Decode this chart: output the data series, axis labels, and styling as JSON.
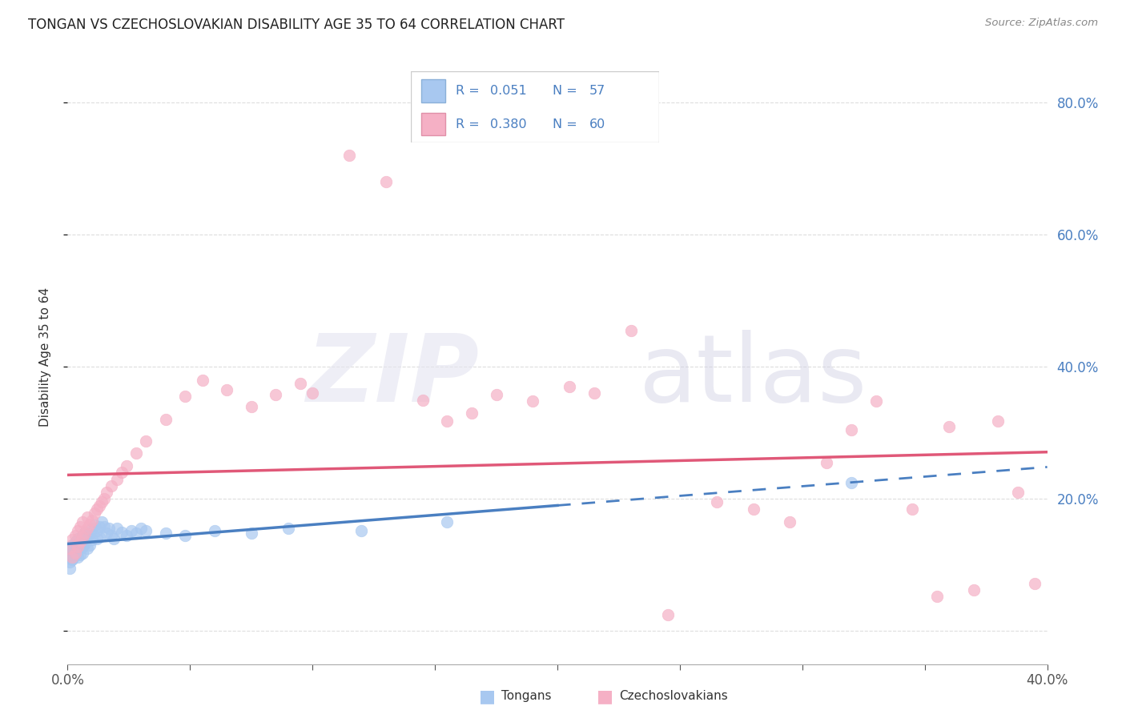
{
  "title": "TONGAN VS CZECHOSLOVAKIAN DISABILITY AGE 35 TO 64 CORRELATION CHART",
  "source": "Source: ZipAtlas.com",
  "ylabel": "Disability Age 35 to 64",
  "xlim": [
    0.0,
    0.4
  ],
  "ylim": [
    -0.05,
    0.88
  ],
  "legend_r1": "0.051",
  "legend_n1": "57",
  "legend_r2": "0.380",
  "legend_n2": "60",
  "tongan_color": "#a8c8f0",
  "czechoslovakian_color": "#f5b0c5",
  "trendline_tongan_solid_color": "#4a7fc1",
  "trendline_czechoslovakian_color": "#e05878",
  "label_color": "#4a7fc1",
  "background_color": "#ffffff",
  "grid_color": "#dddddd",
  "tongan_x": [
    0.001,
    0.001,
    0.001,
    0.001,
    0.002,
    0.002,
    0.002,
    0.002,
    0.002,
    0.003,
    0.003,
    0.003,
    0.003,
    0.004,
    0.004,
    0.004,
    0.004,
    0.005,
    0.005,
    0.005,
    0.006,
    0.006,
    0.006,
    0.007,
    0.007,
    0.008,
    0.008,
    0.009,
    0.009,
    0.01,
    0.01,
    0.011,
    0.012,
    0.012,
    0.013,
    0.013,
    0.014,
    0.015,
    0.016,
    0.017,
    0.018,
    0.019,
    0.02,
    0.022,
    0.024,
    0.026,
    0.028,
    0.03,
    0.032,
    0.04,
    0.048,
    0.06,
    0.075,
    0.09,
    0.12,
    0.155,
    0.32
  ],
  "tongan_y": [
    0.12,
    0.105,
    0.115,
    0.095,
    0.125,
    0.11,
    0.13,
    0.108,
    0.118,
    0.122,
    0.135,
    0.115,
    0.128,
    0.14,
    0.12,
    0.132,
    0.112,
    0.125,
    0.138,
    0.115,
    0.145,
    0.128,
    0.118,
    0.15,
    0.132,
    0.142,
    0.125,
    0.148,
    0.13,
    0.155,
    0.138,
    0.16,
    0.152,
    0.14,
    0.158,
    0.142,
    0.165,
    0.158,
    0.148,
    0.155,
    0.145,
    0.14,
    0.155,
    0.15,
    0.145,
    0.152,
    0.148,
    0.155,
    0.152,
    0.148,
    0.145,
    0.152,
    0.148,
    0.155,
    0.152,
    0.165,
    0.225
  ],
  "czechoslovakian_x": [
    0.001,
    0.002,
    0.002,
    0.003,
    0.003,
    0.004,
    0.004,
    0.005,
    0.005,
    0.006,
    0.006,
    0.007,
    0.008,
    0.008,
    0.009,
    0.01,
    0.011,
    0.012,
    0.013,
    0.014,
    0.015,
    0.016,
    0.018,
    0.02,
    0.022,
    0.024,
    0.028,
    0.032,
    0.04,
    0.048,
    0.055,
    0.065,
    0.075,
    0.085,
    0.095,
    0.1,
    0.115,
    0.13,
    0.145,
    0.155,
    0.165,
    0.175,
    0.19,
    0.205,
    0.215,
    0.23,
    0.245,
    0.265,
    0.28,
    0.295,
    0.31,
    0.32,
    0.33,
    0.345,
    0.355,
    0.36,
    0.37,
    0.38,
    0.388,
    0.395
  ],
  "czechoslovakian_y": [
    0.125,
    0.112,
    0.138,
    0.118,
    0.145,
    0.128,
    0.152,
    0.135,
    0.158,
    0.142,
    0.165,
    0.148,
    0.172,
    0.155,
    0.162,
    0.168,
    0.178,
    0.185,
    0.19,
    0.195,
    0.2,
    0.21,
    0.22,
    0.23,
    0.24,
    0.25,
    0.27,
    0.288,
    0.32,
    0.355,
    0.38,
    0.365,
    0.34,
    0.358,
    0.375,
    0.36,
    0.72,
    0.68,
    0.35,
    0.318,
    0.33,
    0.358,
    0.348,
    0.37,
    0.36,
    0.455,
    0.025,
    0.195,
    0.185,
    0.165,
    0.255,
    0.305,
    0.348,
    0.185,
    0.052,
    0.31,
    0.062,
    0.318,
    0.21,
    0.072
  ],
  "trendline_solid_end": 0.2,
  "trendline_dashed_start": 0.2
}
